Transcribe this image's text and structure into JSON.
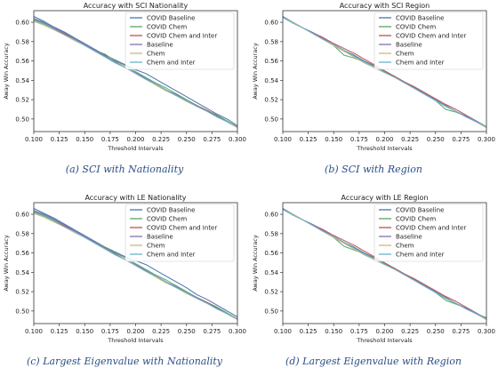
{
  "colors": {
    "COVID Baseline": "#4c72b0",
    "COVID Chem": "#55a868",
    "COVID Chem and Inter": "#c44e52",
    "Baseline": "#8172b2",
    "Chem": "#ccb974",
    "Chem and Inter": "#64b5cd"
  },
  "chart_data": [
    {
      "type": "line",
      "title": "Accuracy with SCI Nationality",
      "caption": "(a) SCI with Nationality",
      "xlabel": "Threshold Intervals",
      "ylabel": "Away Win Accuracy",
      "xlim": [
        0.1,
        0.3
      ],
      "ylim": [
        0.487,
        0.612
      ],
      "xticks": [
        "0.100",
        "0.125",
        "0.150",
        "0.175",
        "0.200",
        "0.225",
        "0.250",
        "0.275",
        "0.300"
      ],
      "yticks": [
        "0.50",
        "0.52",
        "0.54",
        "0.56",
        "0.58",
        "0.60"
      ],
      "legend_position": "top-right",
      "x": [
        0.1,
        0.11,
        0.12,
        0.13,
        0.14,
        0.15,
        0.16,
        0.17,
        0.18,
        0.19,
        0.2,
        0.21,
        0.22,
        0.23,
        0.24,
        0.25,
        0.26,
        0.27,
        0.28,
        0.29,
        0.3
      ],
      "series": [
        {
          "name": "COVID Baseline",
          "values": [
            0.606,
            0.601,
            0.595,
            0.59,
            0.584,
            0.578,
            0.572,
            0.566,
            0.561,
            0.556,
            0.551,
            0.547,
            0.541,
            0.535,
            0.529,
            0.523,
            0.517,
            0.511,
            0.505,
            0.5,
            0.493
          ]
        },
        {
          "name": "COVID Chem",
          "values": [
            0.603,
            0.599,
            0.594,
            0.589,
            0.583,
            0.577,
            0.571,
            0.567,
            0.56,
            0.555,
            0.549,
            0.543,
            0.537,
            0.532,
            0.526,
            0.52,
            0.514,
            0.509,
            0.504,
            0.498,
            0.492
          ]
        },
        {
          "name": "COVID Chem and Inter",
          "values": [
            0.602,
            0.598,
            0.593,
            0.588,
            0.582,
            0.576,
            0.571,
            0.565,
            0.559,
            0.553,
            0.547,
            0.541,
            0.536,
            0.53,
            0.525,
            0.519,
            0.514,
            0.509,
            0.503,
            0.497,
            0.491
          ]
        },
        {
          "name": "Baseline",
          "values": [
            0.604,
            0.6,
            0.594,
            0.589,
            0.583,
            0.577,
            0.571,
            0.565,
            0.559,
            0.553,
            0.548,
            0.542,
            0.536,
            0.53,
            0.525,
            0.519,
            0.514,
            0.508,
            0.503,
            0.497,
            0.492
          ]
        },
        {
          "name": "Chem",
          "values": [
            0.601,
            0.597,
            0.592,
            0.587,
            0.581,
            0.576,
            0.57,
            0.564,
            0.558,
            0.553,
            0.547,
            0.541,
            0.535,
            0.529,
            0.524,
            0.518,
            0.513,
            0.508,
            0.502,
            0.497,
            0.491
          ]
        },
        {
          "name": "Chem and Inter",
          "values": [
            0.602,
            0.598,
            0.593,
            0.587,
            0.582,
            0.576,
            0.57,
            0.564,
            0.558,
            0.553,
            0.547,
            0.541,
            0.536,
            0.53,
            0.524,
            0.519,
            0.513,
            0.508,
            0.502,
            0.497,
            0.492
          ]
        }
      ]
    },
    {
      "type": "line",
      "title": "Accuracy with SCI Region",
      "caption": "(b) SCI with Region",
      "xlabel": "Threshold Intervals",
      "ylabel": "Away Win Accuracy",
      "xlim": [
        0.1,
        0.3
      ],
      "ylim": [
        0.487,
        0.612
      ],
      "xticks": [
        "0.100",
        "0.125",
        "0.150",
        "0.175",
        "0.200",
        "0.225",
        "0.250",
        "0.275",
        "0.300"
      ],
      "yticks": [
        "0.50",
        "0.52",
        "0.54",
        "0.56",
        "0.58",
        "0.60"
      ],
      "legend_position": "top-right",
      "x": [
        0.1,
        0.11,
        0.12,
        0.13,
        0.14,
        0.15,
        0.16,
        0.17,
        0.18,
        0.19,
        0.2,
        0.21,
        0.22,
        0.23,
        0.24,
        0.25,
        0.26,
        0.27,
        0.28,
        0.29,
        0.3
      ],
      "series": [
        {
          "name": "COVID Baseline",
          "values": [
            0.606,
            0.6,
            0.594,
            0.589,
            0.583,
            0.577,
            0.571,
            0.566,
            0.56,
            0.555,
            0.549,
            0.544,
            0.538,
            0.532,
            0.526,
            0.52,
            0.513,
            0.508,
            0.503,
            0.497,
            0.492
          ]
        },
        {
          "name": "COVID Chem",
          "values": [
            0.605,
            0.599,
            0.594,
            0.588,
            0.582,
            0.576,
            0.566,
            0.563,
            0.559,
            0.554,
            0.549,
            0.544,
            0.538,
            0.532,
            0.526,
            0.519,
            0.51,
            0.507,
            0.503,
            0.497,
            0.491
          ]
        },
        {
          "name": "COVID Chem and Inter",
          "values": [
            0.605,
            0.6,
            0.594,
            0.589,
            0.584,
            0.578,
            0.573,
            0.568,
            0.562,
            0.556,
            0.55,
            0.544,
            0.538,
            0.533,
            0.527,
            0.521,
            0.515,
            0.51,
            0.504,
            0.498,
            0.492
          ]
        },
        {
          "name": "Baseline",
          "values": [
            0.606,
            0.6,
            0.594,
            0.589,
            0.583,
            0.577,
            0.571,
            0.565,
            0.559,
            0.553,
            0.548,
            0.543,
            0.537,
            0.532,
            0.526,
            0.52,
            0.514,
            0.508,
            0.503,
            0.498,
            0.492
          ]
        },
        {
          "name": "Chem",
          "values": [
            0.605,
            0.6,
            0.594,
            0.588,
            0.582,
            0.576,
            0.57,
            0.564,
            0.558,
            0.553,
            0.548,
            0.543,
            0.537,
            0.531,
            0.525,
            0.519,
            0.513,
            0.508,
            0.502,
            0.497,
            0.491
          ]
        },
        {
          "name": "Chem and Inter",
          "values": [
            0.605,
            0.599,
            0.594,
            0.588,
            0.582,
            0.577,
            0.571,
            0.565,
            0.559,
            0.554,
            0.548,
            0.543,
            0.537,
            0.531,
            0.525,
            0.519,
            0.513,
            0.508,
            0.502,
            0.497,
            0.492
          ]
        }
      ]
    },
    {
      "type": "line",
      "title": "Accuracy with LE Nationality",
      "caption": "(c) Largest Eigenvalue with Nationality",
      "xlabel": "Threshold Intervals",
      "ylabel": "Away Win Accuracy",
      "xlim": [
        0.1,
        0.3
      ],
      "ylim": [
        0.487,
        0.612
      ],
      "xticks": [
        "0.100",
        "0.125",
        "0.150",
        "0.175",
        "0.200",
        "0.225",
        "0.250",
        "0.275",
        "0.300"
      ],
      "yticks": [
        "0.50",
        "0.52",
        "0.54",
        "0.56",
        "0.58",
        "0.60"
      ],
      "legend_position": "top-right",
      "x": [
        0.1,
        0.11,
        0.12,
        0.13,
        0.14,
        0.15,
        0.16,
        0.17,
        0.18,
        0.19,
        0.2,
        0.21,
        0.22,
        0.23,
        0.24,
        0.25,
        0.26,
        0.27,
        0.28,
        0.29,
        0.3
      ],
      "series": [
        {
          "name": "COVID Baseline",
          "values": [
            0.606,
            0.601,
            0.596,
            0.59,
            0.584,
            0.578,
            0.572,
            0.566,
            0.561,
            0.556,
            0.552,
            0.548,
            0.542,
            0.536,
            0.53,
            0.524,
            0.517,
            0.512,
            0.506,
            0.5,
            0.494
          ]
        },
        {
          "name": "COVID Chem",
          "values": [
            0.603,
            0.599,
            0.594,
            0.589,
            0.583,
            0.577,
            0.571,
            0.566,
            0.56,
            0.555,
            0.549,
            0.543,
            0.537,
            0.532,
            0.526,
            0.52,
            0.514,
            0.509,
            0.504,
            0.498,
            0.492
          ]
        },
        {
          "name": "COVID Chem and Inter",
          "values": [
            0.602,
            0.598,
            0.593,
            0.588,
            0.582,
            0.576,
            0.571,
            0.565,
            0.559,
            0.553,
            0.547,
            0.541,
            0.536,
            0.53,
            0.525,
            0.519,
            0.514,
            0.509,
            0.503,
            0.497,
            0.491
          ]
        },
        {
          "name": "Baseline",
          "values": [
            0.604,
            0.6,
            0.595,
            0.589,
            0.583,
            0.577,
            0.571,
            0.565,
            0.559,
            0.553,
            0.548,
            0.542,
            0.536,
            0.53,
            0.525,
            0.519,
            0.514,
            0.508,
            0.503,
            0.497,
            0.492
          ]
        },
        {
          "name": "Chem",
          "values": [
            0.601,
            0.597,
            0.592,
            0.587,
            0.581,
            0.576,
            0.57,
            0.564,
            0.558,
            0.553,
            0.547,
            0.541,
            0.535,
            0.529,
            0.524,
            0.518,
            0.513,
            0.508,
            0.502,
            0.497,
            0.491
          ]
        },
        {
          "name": "Chem and Inter",
          "values": [
            0.602,
            0.598,
            0.593,
            0.587,
            0.582,
            0.576,
            0.57,
            0.564,
            0.558,
            0.553,
            0.547,
            0.541,
            0.536,
            0.53,
            0.524,
            0.519,
            0.513,
            0.508,
            0.502,
            0.497,
            0.492
          ]
        }
      ]
    },
    {
      "type": "line",
      "title": "Accuracy with LE Region",
      "caption": "(d) Largest Eigenvalue with Region",
      "xlabel": "Threshold Intervals",
      "ylabel": "Away Win Accuracy",
      "xlim": [
        0.1,
        0.3
      ],
      "ylim": [
        0.487,
        0.612
      ],
      "xticks": [
        "0.100",
        "0.125",
        "0.150",
        "0.175",
        "0.200",
        "0.225",
        "0.250",
        "0.275",
        "0.300"
      ],
      "yticks": [
        "0.50",
        "0.52",
        "0.54",
        "0.56",
        "0.58",
        "0.60"
      ],
      "legend_position": "top-right",
      "x": [
        0.1,
        0.11,
        0.12,
        0.13,
        0.14,
        0.15,
        0.16,
        0.17,
        0.18,
        0.19,
        0.2,
        0.21,
        0.22,
        0.23,
        0.24,
        0.25,
        0.26,
        0.27,
        0.28,
        0.29,
        0.3
      ],
      "series": [
        {
          "name": "COVID Baseline",
          "values": [
            0.606,
            0.6,
            0.594,
            0.589,
            0.583,
            0.577,
            0.571,
            0.566,
            0.56,
            0.555,
            0.549,
            0.544,
            0.538,
            0.532,
            0.526,
            0.52,
            0.513,
            0.508,
            0.503,
            0.497,
            0.493
          ]
        },
        {
          "name": "COVID Chem",
          "values": [
            0.605,
            0.599,
            0.594,
            0.588,
            0.582,
            0.576,
            0.567,
            0.563,
            0.559,
            0.554,
            0.549,
            0.544,
            0.538,
            0.532,
            0.526,
            0.519,
            0.511,
            0.507,
            0.503,
            0.497,
            0.491
          ]
        },
        {
          "name": "COVID Chem and Inter",
          "values": [
            0.605,
            0.6,
            0.594,
            0.589,
            0.584,
            0.578,
            0.573,
            0.568,
            0.562,
            0.556,
            0.55,
            0.544,
            0.538,
            0.533,
            0.527,
            0.521,
            0.515,
            0.51,
            0.504,
            0.498,
            0.492
          ]
        },
        {
          "name": "Baseline",
          "values": [
            0.606,
            0.6,
            0.594,
            0.589,
            0.583,
            0.577,
            0.571,
            0.565,
            0.559,
            0.553,
            0.548,
            0.543,
            0.537,
            0.532,
            0.526,
            0.52,
            0.514,
            0.508,
            0.503,
            0.498,
            0.492
          ]
        },
        {
          "name": "Chem",
          "values": [
            0.605,
            0.6,
            0.594,
            0.588,
            0.582,
            0.576,
            0.57,
            0.564,
            0.558,
            0.553,
            0.548,
            0.543,
            0.537,
            0.531,
            0.525,
            0.519,
            0.513,
            0.508,
            0.502,
            0.497,
            0.491
          ]
        },
        {
          "name": "Chem and Inter",
          "values": [
            0.605,
            0.599,
            0.594,
            0.588,
            0.582,
            0.577,
            0.571,
            0.565,
            0.559,
            0.554,
            0.548,
            0.543,
            0.537,
            0.531,
            0.525,
            0.519,
            0.513,
            0.508,
            0.502,
            0.497,
            0.492
          ]
        }
      ]
    }
  ]
}
